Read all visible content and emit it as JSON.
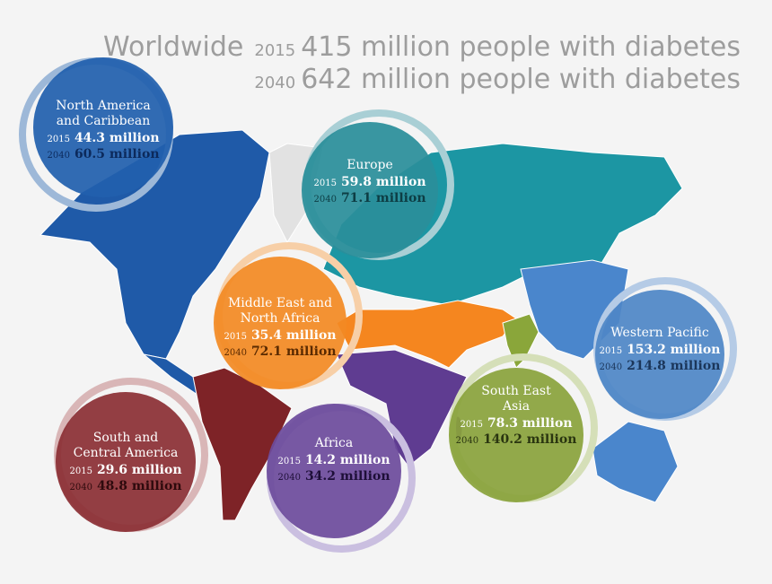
{
  "header": {
    "title": "Worldwide",
    "rows": [
      {
        "year": "2015",
        "text": "415 million people with diabetes"
      },
      {
        "year": "2040",
        "text": "642 million people with diabetes"
      }
    ]
  },
  "regions": [
    {
      "name": [
        "North America",
        "and Caribbean"
      ],
      "rows": [
        {
          "year": "2015",
          "value": "44.3 million"
        },
        {
          "year": "2040",
          "value": "60.5 million"
        }
      ]
    },
    {
      "name": [
        "Europe"
      ],
      "rows": [
        {
          "year": "2015",
          "value": "59.8 million"
        },
        {
          "year": "2040",
          "value": "71.1 million"
        }
      ]
    },
    {
      "name": [
        "Middle East and",
        "North Africa"
      ],
      "rows": [
        {
          "year": "2015",
          "value": "35.4 million"
        },
        {
          "year": "2040",
          "value": "72.1 million"
        }
      ]
    },
    {
      "name": [
        "Western Pacific"
      ],
      "rows": [
        {
          "year": "2015",
          "value": "153.2 million"
        },
        {
          "year": "2040",
          "value": "214.8 million"
        }
      ]
    },
    {
      "name": [
        "South East",
        "Asia"
      ],
      "rows": [
        {
          "year": "2015",
          "value": "78.3 million"
        },
        {
          "year": "2040",
          "value": "140.2 million"
        }
      ]
    },
    {
      "name": [
        "South and",
        "Central America"
      ],
      "rows": [
        {
          "year": "2015",
          "value": "29.6 million"
        },
        {
          "year": "2040",
          "value": "48.8 million"
        }
      ]
    },
    {
      "name": [
        "Africa"
      ],
      "rows": [
        {
          "year": "2015",
          "value": "14.2 million"
        },
        {
          "year": "2040",
          "value": "34.2 million"
        }
      ]
    }
  ]
}
